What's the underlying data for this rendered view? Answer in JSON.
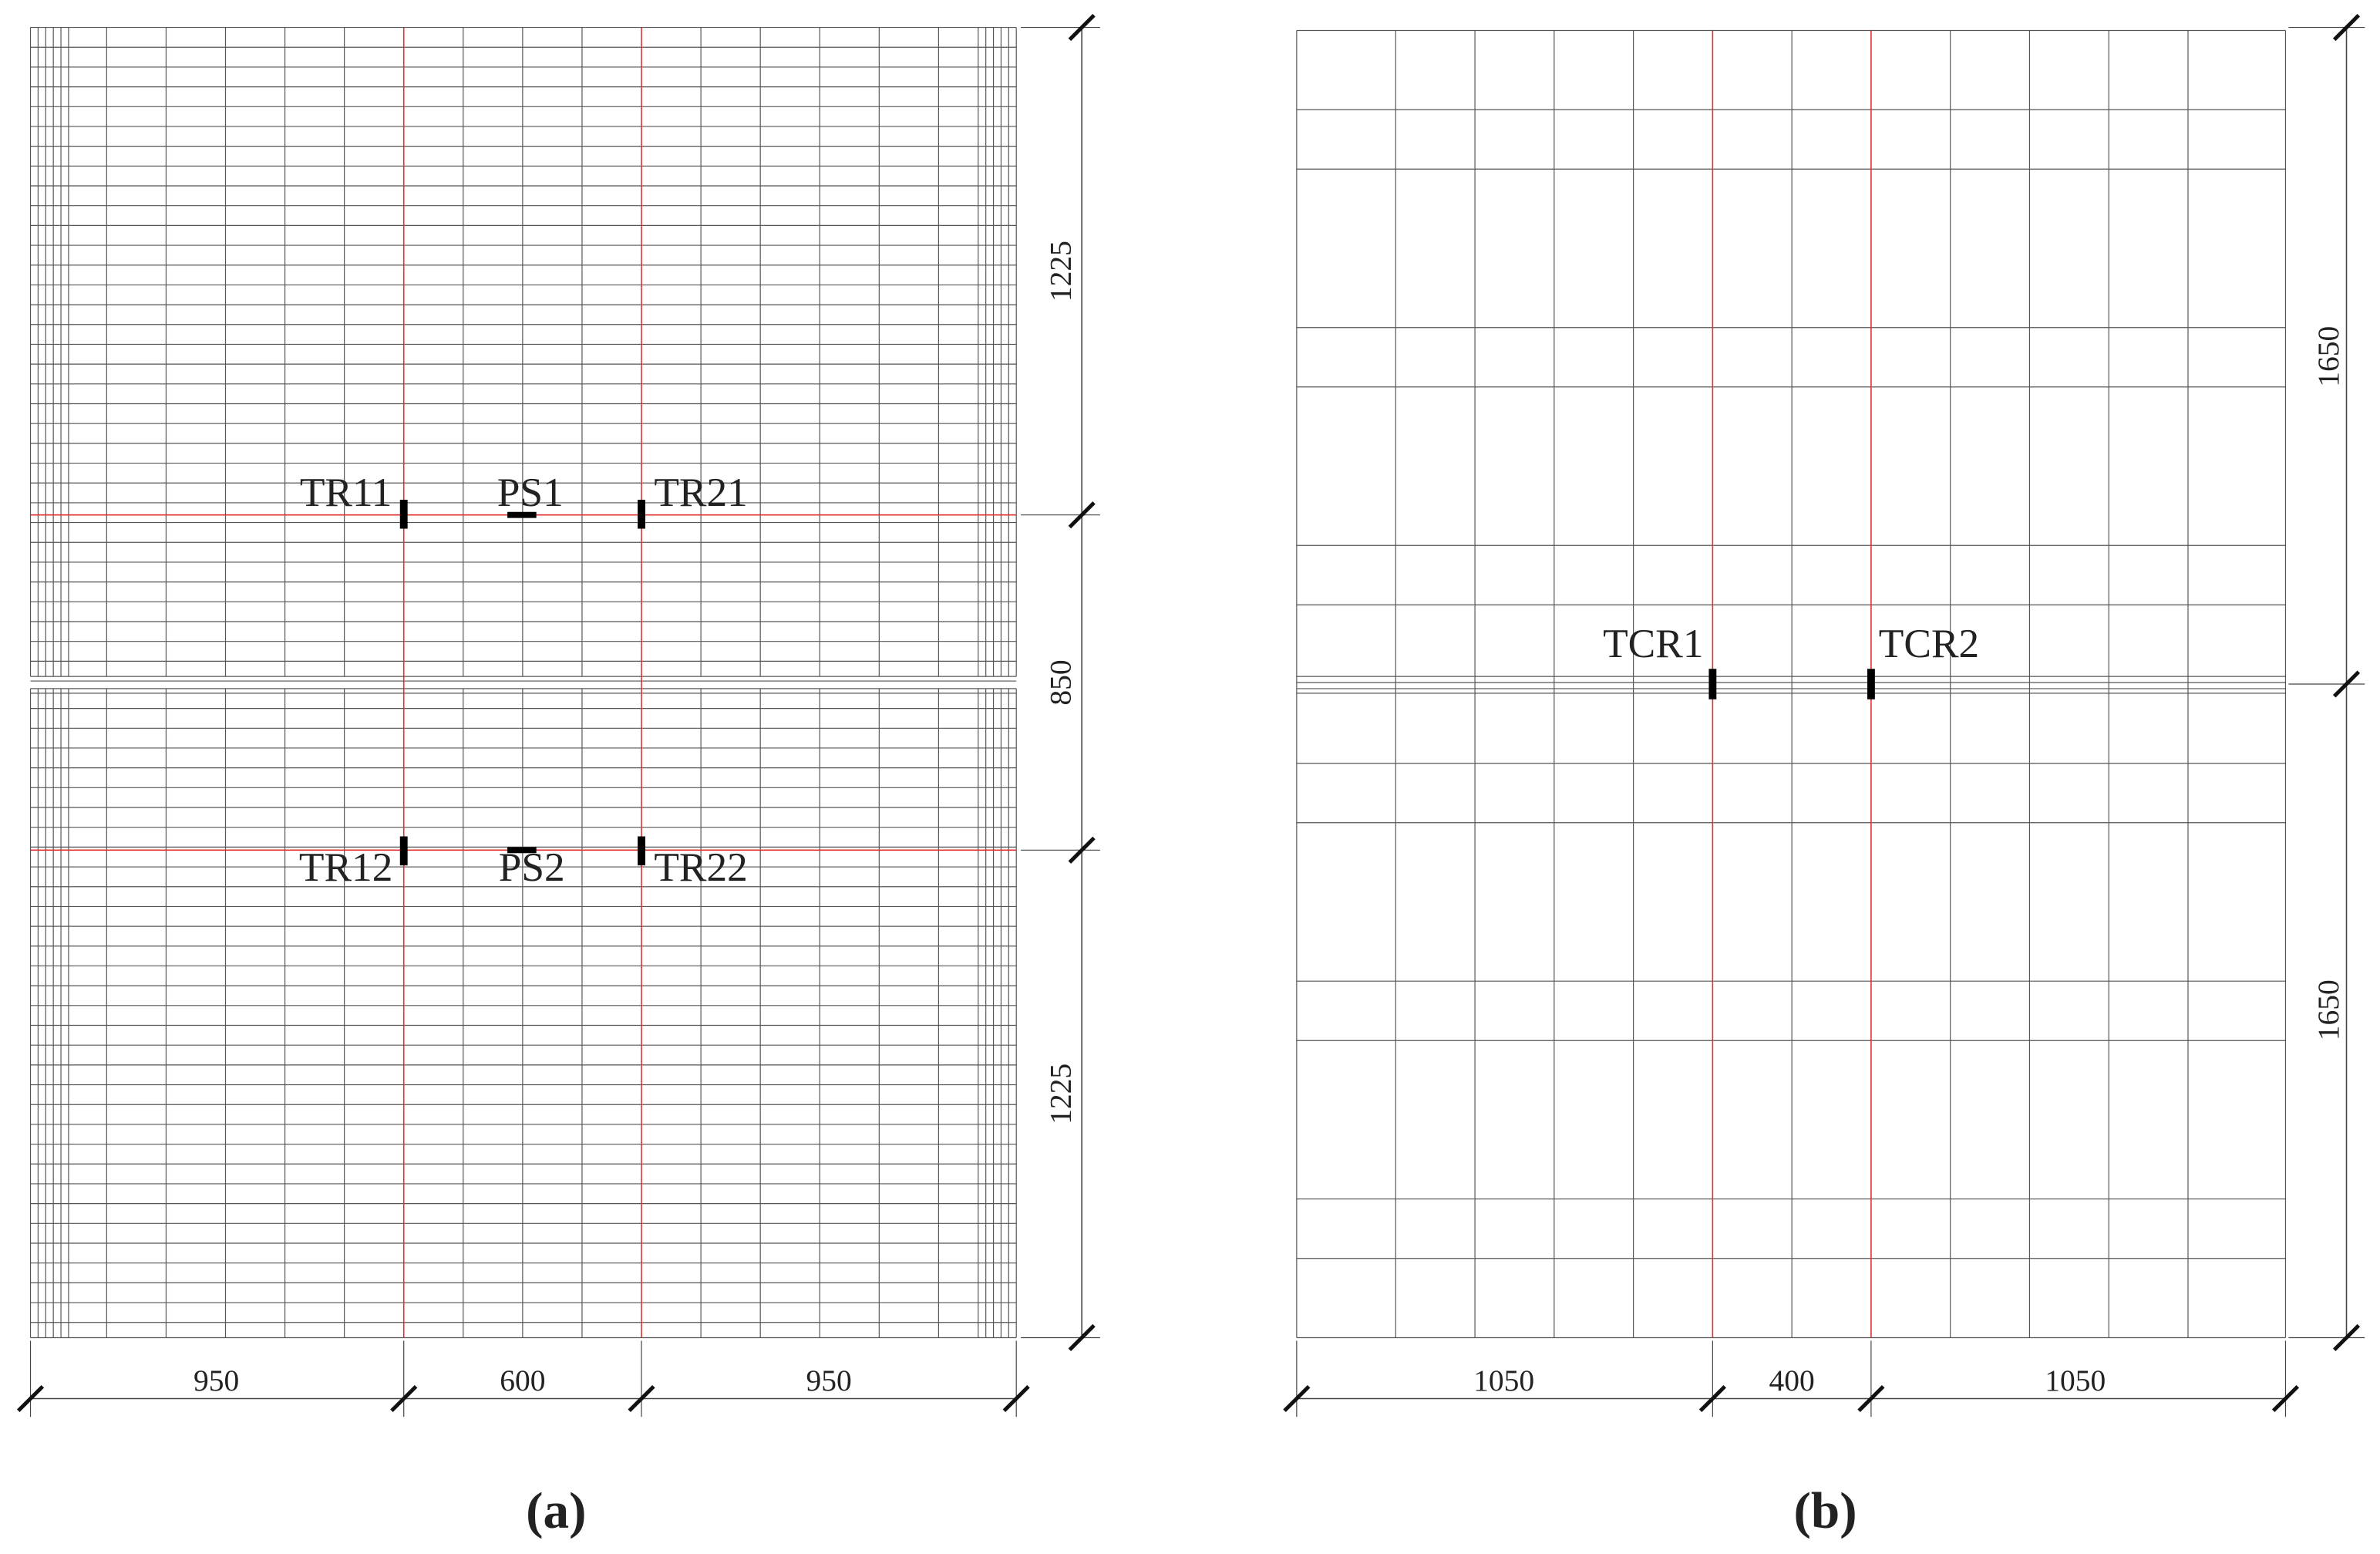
{
  "panels": [
    {
      "label": "(a)",
      "dimensions": {
        "horizontal": [
          950,
          600,
          950
        ],
        "vertical": [
          1225,
          850,
          1225
        ]
      },
      "sensors": [
        "TR11",
        "PS1",
        "TR21",
        "TR12",
        "PS2",
        "TR22"
      ]
    },
    {
      "label": "(b)",
      "dimensions": {
        "horizontal": [
          1050,
          400,
          1050
        ],
        "vertical": [
          1650,
          1650
        ]
      },
      "sensors": [
        "TCR1",
        "TCR2"
      ]
    }
  ]
}
